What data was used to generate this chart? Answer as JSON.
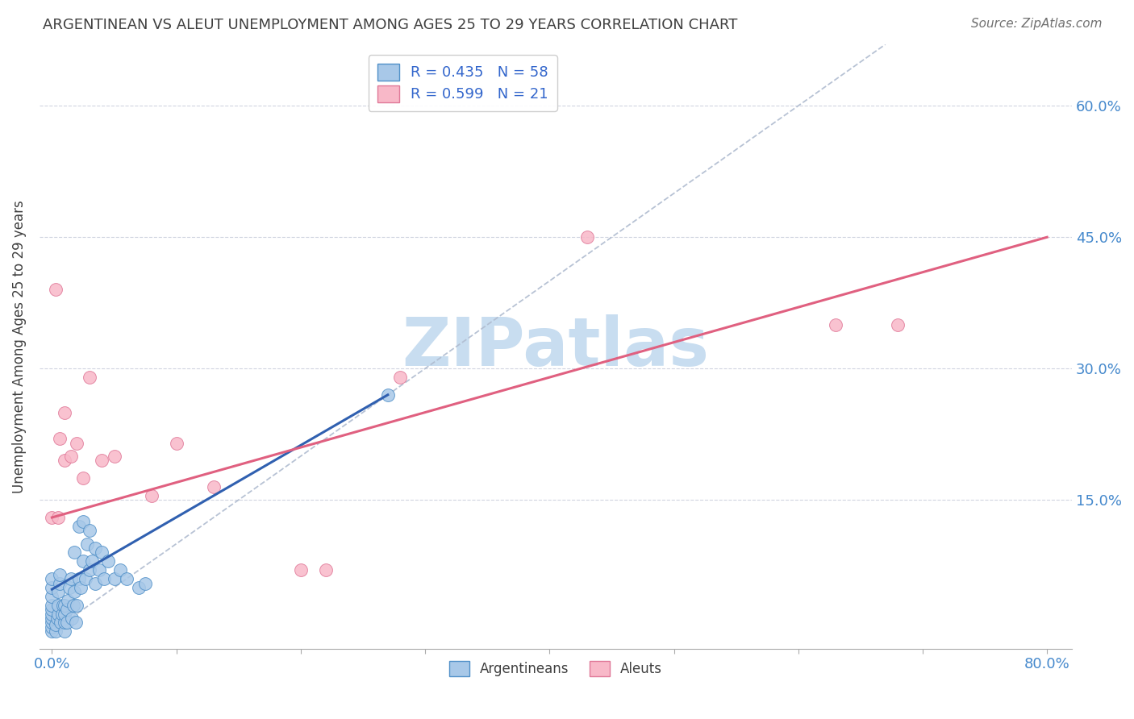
{
  "title": "ARGENTINEAN VS ALEUT UNEMPLOYMENT AMONG AGES 25 TO 29 YEARS CORRELATION CHART",
  "source": "Source: ZipAtlas.com",
  "ylabel": "Unemployment Among Ages 25 to 29 years",
  "xlim": [
    -0.01,
    0.82
  ],
  "ylim": [
    -0.02,
    0.67
  ],
  "ytick_vals": [
    0.15,
    0.3,
    0.45,
    0.6
  ],
  "ytick_labels": [
    "15.0%",
    "30.0%",
    "45.0%",
    "60.0%"
  ],
  "xtick_vals": [
    0.0,
    0.1,
    0.2,
    0.3,
    0.4,
    0.5,
    0.6,
    0.7,
    0.8
  ],
  "arg_scatter_color_face": "#a8c8e8",
  "arg_scatter_color_edge": "#5090c8",
  "aleu_scatter_color_face": "#f8b8c8",
  "aleu_scatter_color_edge": "#e07898",
  "arg_trend_color": "#3060b0",
  "aleu_trend_color": "#e06080",
  "diag_color": "#b0bcd0",
  "watermark_text": "ZIPatlas",
  "watermark_color": "#c8ddf0",
  "title_fontsize": 13,
  "source_fontsize": 11,
  "tick_label_color": "#4488cc",
  "ylabel_color": "#404040",
  "arg_x": [
    0.0,
    0.0,
    0.0,
    0.0,
    0.0,
    0.0,
    0.0,
    0.0,
    0.0,
    0.0,
    0.003,
    0.003,
    0.004,
    0.005,
    0.005,
    0.005,
    0.006,
    0.006,
    0.007,
    0.008,
    0.009,
    0.01,
    0.01,
    0.01,
    0.01,
    0.012,
    0.012,
    0.013,
    0.014,
    0.015,
    0.016,
    0.017,
    0.018,
    0.018,
    0.019,
    0.02,
    0.022,
    0.022,
    0.023,
    0.025,
    0.025,
    0.027,
    0.028,
    0.03,
    0.03,
    0.032,
    0.035,
    0.035,
    0.038,
    0.04,
    0.042,
    0.045,
    0.05,
    0.055,
    0.06,
    0.07,
    0.075,
    0.27
  ],
  "arg_y": [
    0.0,
    0.005,
    0.01,
    0.015,
    0.02,
    0.025,
    0.03,
    0.04,
    0.05,
    0.06,
    0.0,
    0.008,
    0.015,
    0.02,
    0.03,
    0.045,
    0.055,
    0.065,
    0.01,
    0.02,
    0.03,
    0.0,
    0.01,
    0.02,
    0.03,
    0.01,
    0.025,
    0.035,
    0.05,
    0.06,
    0.015,
    0.03,
    0.045,
    0.09,
    0.01,
    0.03,
    0.06,
    0.12,
    0.05,
    0.08,
    0.125,
    0.06,
    0.1,
    0.07,
    0.115,
    0.08,
    0.055,
    0.095,
    0.07,
    0.09,
    0.06,
    0.08,
    0.06,
    0.07,
    0.06,
    0.05,
    0.055,
    0.27
  ],
  "aleu_x": [
    0.0,
    0.003,
    0.005,
    0.006,
    0.01,
    0.01,
    0.015,
    0.02,
    0.025,
    0.03,
    0.04,
    0.05,
    0.08,
    0.1,
    0.13,
    0.2,
    0.22,
    0.28,
    0.43,
    0.63,
    0.68
  ],
  "aleu_y": [
    0.13,
    0.39,
    0.13,
    0.22,
    0.195,
    0.25,
    0.2,
    0.215,
    0.175,
    0.29,
    0.195,
    0.2,
    0.155,
    0.215,
    0.165,
    0.07,
    0.07,
    0.29,
    0.45,
    0.35,
    0.35
  ],
  "arg_trend_x0": 0.0,
  "arg_trend_y0": 0.048,
  "arg_trend_x1": 0.27,
  "arg_trend_y1": 0.27,
  "aleu_trend_x0": 0.0,
  "aleu_trend_y0": 0.13,
  "aleu_trend_x1": 0.8,
  "aleu_trend_y1": 0.45
}
